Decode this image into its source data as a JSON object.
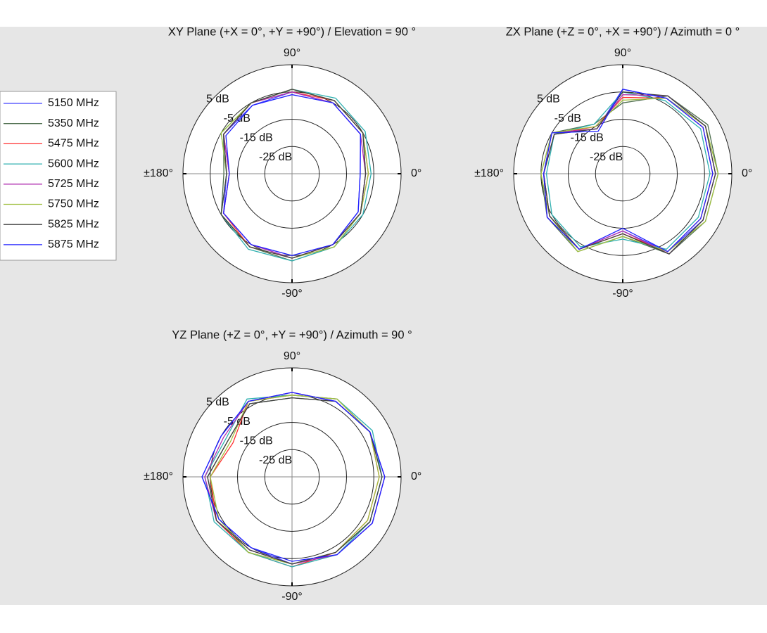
{
  "chart_data": [
    {
      "type": "polar",
      "title": "XY Plane (+X = 0°, +Y = +90°) / Elevation = 90 °",
      "x": [
        0,
        30,
        60,
        90,
        120,
        150,
        180,
        210,
        240,
        270,
        300,
        330
      ],
      "rlim": [
        -35,
        5
      ],
      "rticks": [
        {
          "value": 5,
          "label": "5 dB"
        },
        {
          "value": -5,
          "label": "-5 dB"
        },
        {
          "value": -15,
          "label": "-15 dB"
        },
        {
          "value": -25,
          "label": "-25 dB"
        }
      ],
      "xticks": [
        {
          "value": 90,
          "label": "90°"
        },
        {
          "value": 0,
          "label": "0°"
        },
        {
          "value": -90,
          "label": "-90°"
        },
        {
          "value": 180,
          "label": "±180°"
        }
      ],
      "series": [
        {
          "name": "5150 MHz",
          "color": "#4040ff",
          "values": [
            -10,
            -6,
            -5,
            -5,
            -6,
            -6,
            -11,
            -6,
            -5,
            -4,
            -5,
            -7
          ]
        },
        {
          "name": "5350 MHz",
          "color": "#507050",
          "values": [
            -8,
            -5,
            -4,
            -4,
            -5,
            -6,
            -10,
            -5,
            -4,
            -3,
            -4,
            -6
          ]
        },
        {
          "name": "5475 MHz",
          "color": "#ff3030",
          "values": [
            -7,
            -5,
            -4,
            -5,
            -5,
            -6,
            -12,
            -6,
            -4,
            -4,
            -5,
            -6
          ]
        },
        {
          "name": "5600 MHz",
          "color": "#30b0b0",
          "values": [
            -6,
            -4,
            -3,
            -4,
            -5,
            -5,
            -11,
            -5,
            -3,
            -3,
            -4,
            -5
          ]
        },
        {
          "name": "5725 MHz",
          "color": "#b030b0",
          "values": [
            -8,
            -6,
            -5,
            -5,
            -5,
            -6,
            -12,
            -6,
            -5,
            -4,
            -5,
            -6
          ]
        },
        {
          "name": "5750 MHz",
          "color": "#a0c040",
          "values": [
            -7,
            -5,
            -4,
            -4,
            -5,
            -5,
            -11,
            -5,
            -4,
            -4,
            -4,
            -6
          ]
        },
        {
          "name": "5825 MHz",
          "color": "#404040",
          "values": [
            -8,
            -5,
            -4,
            -4,
            -5,
            -6,
            -11,
            -5,
            -4,
            -4,
            -5,
            -6
          ]
        },
        {
          "name": "5875 MHz",
          "color": "#2020ff",
          "values": [
            -10,
            -6,
            -5,
            -6,
            -6,
            -7,
            -12,
            -6,
            -5,
            -5,
            -5,
            -7
          ]
        }
      ]
    },
    {
      "type": "polar",
      "title": "ZX Plane (+Z = 0°, +X = +90°) / Azimuth = 0 °",
      "x": [
        0,
        30,
        60,
        90,
        120,
        150,
        180,
        210,
        240,
        270,
        300,
        330
      ],
      "rlim": [
        -35,
        5
      ],
      "rticks": [
        {
          "value": 5,
          "label": "5 dB"
        },
        {
          "value": -5,
          "label": "-5 dB"
        },
        {
          "value": -15,
          "label": "-15 dB"
        },
        {
          "value": -25,
          "label": "-25 dB"
        }
      ],
      "xticks": [
        {
          "value": 90,
          "label": "90°"
        },
        {
          "value": 0,
          "label": "0°"
        },
        {
          "value": -90,
          "label": "-90°"
        },
        {
          "value": 180,
          "label": "±180°"
        }
      ],
      "series": [
        {
          "name": "5150 MHz",
          "color": "#4040ff",
          "values": [
            -1,
            0,
            -3,
            -4,
            -16,
            -6,
            -6,
            -4,
            -3,
            -14,
            -2,
            -1
          ]
        },
        {
          "name": "5350 MHz",
          "color": "#507050",
          "values": [
            0,
            1,
            -2,
            -9,
            -14,
            -5,
            -5,
            -3,
            -2,
            -12,
            -1,
            0
          ]
        },
        {
          "name": "5475 MHz",
          "color": "#ff3030",
          "values": [
            -2,
            -1,
            -3,
            -7,
            -15,
            -6,
            -6,
            -4,
            -3,
            -13,
            -2,
            -2
          ]
        },
        {
          "name": "5600 MHz",
          "color": "#30b0b0",
          "values": [
            -3,
            -2,
            -4,
            -5,
            -14,
            -6,
            -7,
            -5,
            -4,
            -11,
            -3,
            -3
          ]
        },
        {
          "name": "5725 MHz",
          "color": "#b030b0",
          "values": [
            -1,
            0,
            -2,
            -6,
            -16,
            -5,
            -6,
            -3,
            -3,
            -14,
            -1,
            -1
          ]
        },
        {
          "name": "5750 MHz",
          "color": "#a0c040",
          "values": [
            0,
            0,
            -3,
            -8,
            -15,
            -5,
            -5,
            -4,
            -2,
            -12,
            -2,
            0
          ]
        },
        {
          "name": "5825 MHz",
          "color": "#404040",
          "values": [
            -1,
            0,
            -2,
            -5,
            -16,
            -6,
            -6,
            -4,
            -3,
            -13,
            -1,
            -1
          ]
        },
        {
          "name": "5875 MHz",
          "color": "#2020ff",
          "values": [
            -2,
            -1,
            -3,
            -4,
            -17,
            -5,
            -6,
            -3,
            -3,
            -15,
            -2,
            -2
          ]
        }
      ]
    },
    {
      "type": "polar",
      "title": "YZ Plane (+Z = 0°, +Y = +90°) / Azimuth = 90 °",
      "x": [
        0,
        30,
        60,
        90,
        120,
        150,
        180,
        210,
        240,
        270,
        300,
        330
      ],
      "rlim": [
        -35,
        5
      ],
      "rticks": [
        {
          "value": 5,
          "label": "5 dB"
        },
        {
          "value": -5,
          "label": "-5 dB"
        },
        {
          "value": -15,
          "label": "-15 dB"
        },
        {
          "value": -25,
          "label": "-25 dB"
        }
      ],
      "xticks": [
        {
          "value": 90,
          "label": "90°"
        },
        {
          "value": 0,
          "label": "0°"
        },
        {
          "value": -90,
          "label": "-90°"
        },
        {
          "value": 180,
          "label": "±180°"
        }
      ],
      "series": [
        {
          "name": "5150 MHz",
          "color": "#4040ff",
          "values": [
            -1,
            -2,
            -3,
            -4,
            -3,
            -5,
            -2,
            -4,
            -5,
            -3,
            -2,
            -1
          ]
        },
        {
          "name": "5350 MHz",
          "color": "#507050",
          "values": [
            -2,
            -2,
            -3,
            -6,
            -4,
            -8,
            -4,
            -3,
            -3,
            -3,
            -3,
            -2
          ]
        },
        {
          "name": "5475 MHz",
          "color": "#ff3030",
          "values": [
            -3,
            -2,
            -2,
            -5,
            -3,
            -10,
            -5,
            -3,
            -3,
            -2,
            -3,
            -3
          ]
        },
        {
          "name": "5600 MHz",
          "color": "#30b0b0",
          "values": [
            -2,
            -1,
            -2,
            -5,
            -2,
            -7,
            -3,
            -2,
            -3,
            -2,
            -2,
            -2
          ]
        },
        {
          "name": "5725 MHz",
          "color": "#b030b0",
          "values": [
            -1,
            -2,
            -3,
            -4,
            -3,
            -6,
            -3,
            -3,
            -4,
            -3,
            -2,
            -1
          ]
        },
        {
          "name": "5750 MHz",
          "color": "#a0c040",
          "values": [
            -3,
            -2,
            -2,
            -5,
            -3,
            -9,
            -5,
            -4,
            -3,
            -3,
            -3,
            -3
          ]
        },
        {
          "name": "5825 MHz",
          "color": "#404040",
          "values": [
            -2,
            -2,
            -3,
            -6,
            -4,
            -8,
            -4,
            -3,
            -4,
            -3,
            -3,
            -2
          ]
        },
        {
          "name": "5875 MHz",
          "color": "#2020ff",
          "values": [
            -1,
            -2,
            -3,
            -4,
            -3,
            -5,
            -2,
            -4,
            -5,
            -4,
            -2,
            -1
          ]
        }
      ]
    }
  ]
}
